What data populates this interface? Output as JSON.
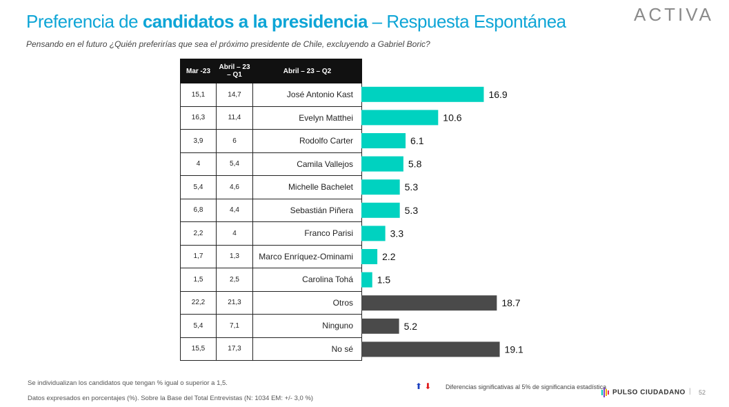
{
  "header": {
    "title_pre": "Preferencia de ",
    "title_bold": "candidatos a la presidencia",
    "title_post": " – Respuesta Espontánea",
    "subtitle": "Pensando en el futuro ¿Quién preferirías que sea el próximo presidente de Chile, excluyendo a Gabriel Boric?",
    "logo": "ACTIVA"
  },
  "table": {
    "col1": "Mar -23",
    "col2": "Abril – 23 – Q1",
    "col3": "Abril – 23 – Q2"
  },
  "chart_data": {
    "type": "bar",
    "orientation": "horizontal",
    "categories": [
      "José Antonio Kast",
      "Evelyn Matthei",
      "Rodolfo Carter",
      "Camila Vallejos",
      "Michelle Bachelet",
      "Sebastián Piñera",
      "Franco Parisi",
      "Marco Enríquez-Ominami",
      "Carolina Tohá",
      "Otros",
      "Ninguno",
      "No sé"
    ],
    "values": [
      16.9,
      10.6,
      6.1,
      5.8,
      5.3,
      5.3,
      3.3,
      2.2,
      1.5,
      18.7,
      5.2,
      19.1
    ],
    "value_labels": [
      "16.9",
      "10.6",
      "6.1",
      "5.8",
      "5.3",
      "5.3",
      "3.3",
      "2.2",
      "1.5",
      "18.7",
      "5.2",
      "19.1"
    ],
    "mar23": [
      "15,1",
      "16,3",
      "3,9",
      "4",
      "5,4",
      "6,8",
      "2,2",
      "1,7",
      "1,5",
      "22,2",
      "5,4",
      "15,5"
    ],
    "abr23_q1": [
      "14,7",
      "11,4",
      "6",
      "5,4",
      "4,6",
      "4,4",
      "4",
      "1,3",
      "2,5",
      "21,3",
      "7,1",
      "17,3"
    ],
    "colors": [
      "#00d2c0",
      "#00d2c0",
      "#00d2c0",
      "#00d2c0",
      "#00d2c0",
      "#00d2c0",
      "#00d2c0",
      "#00d2c0",
      "#00d2c0",
      "#4a4a4a",
      "#4a4a4a",
      "#4a4a4a"
    ],
    "xlim": [
      0,
      20
    ]
  },
  "footer": {
    "note1": "Se individualizan los candidatos que tengan % igual o superior a 1,5.",
    "note2": "Datos expresados en porcentajes (%). Sobre la Base del Total Entrevistas (N: 1034  EM: +/- 3,0 %)",
    "legend_up": "⬆",
    "legend_down": "⬇",
    "legend_text": "Diferencias  significativas  al 5% de significancia estadística",
    "brand": "PULSO CIUDADANO",
    "page": "52"
  }
}
